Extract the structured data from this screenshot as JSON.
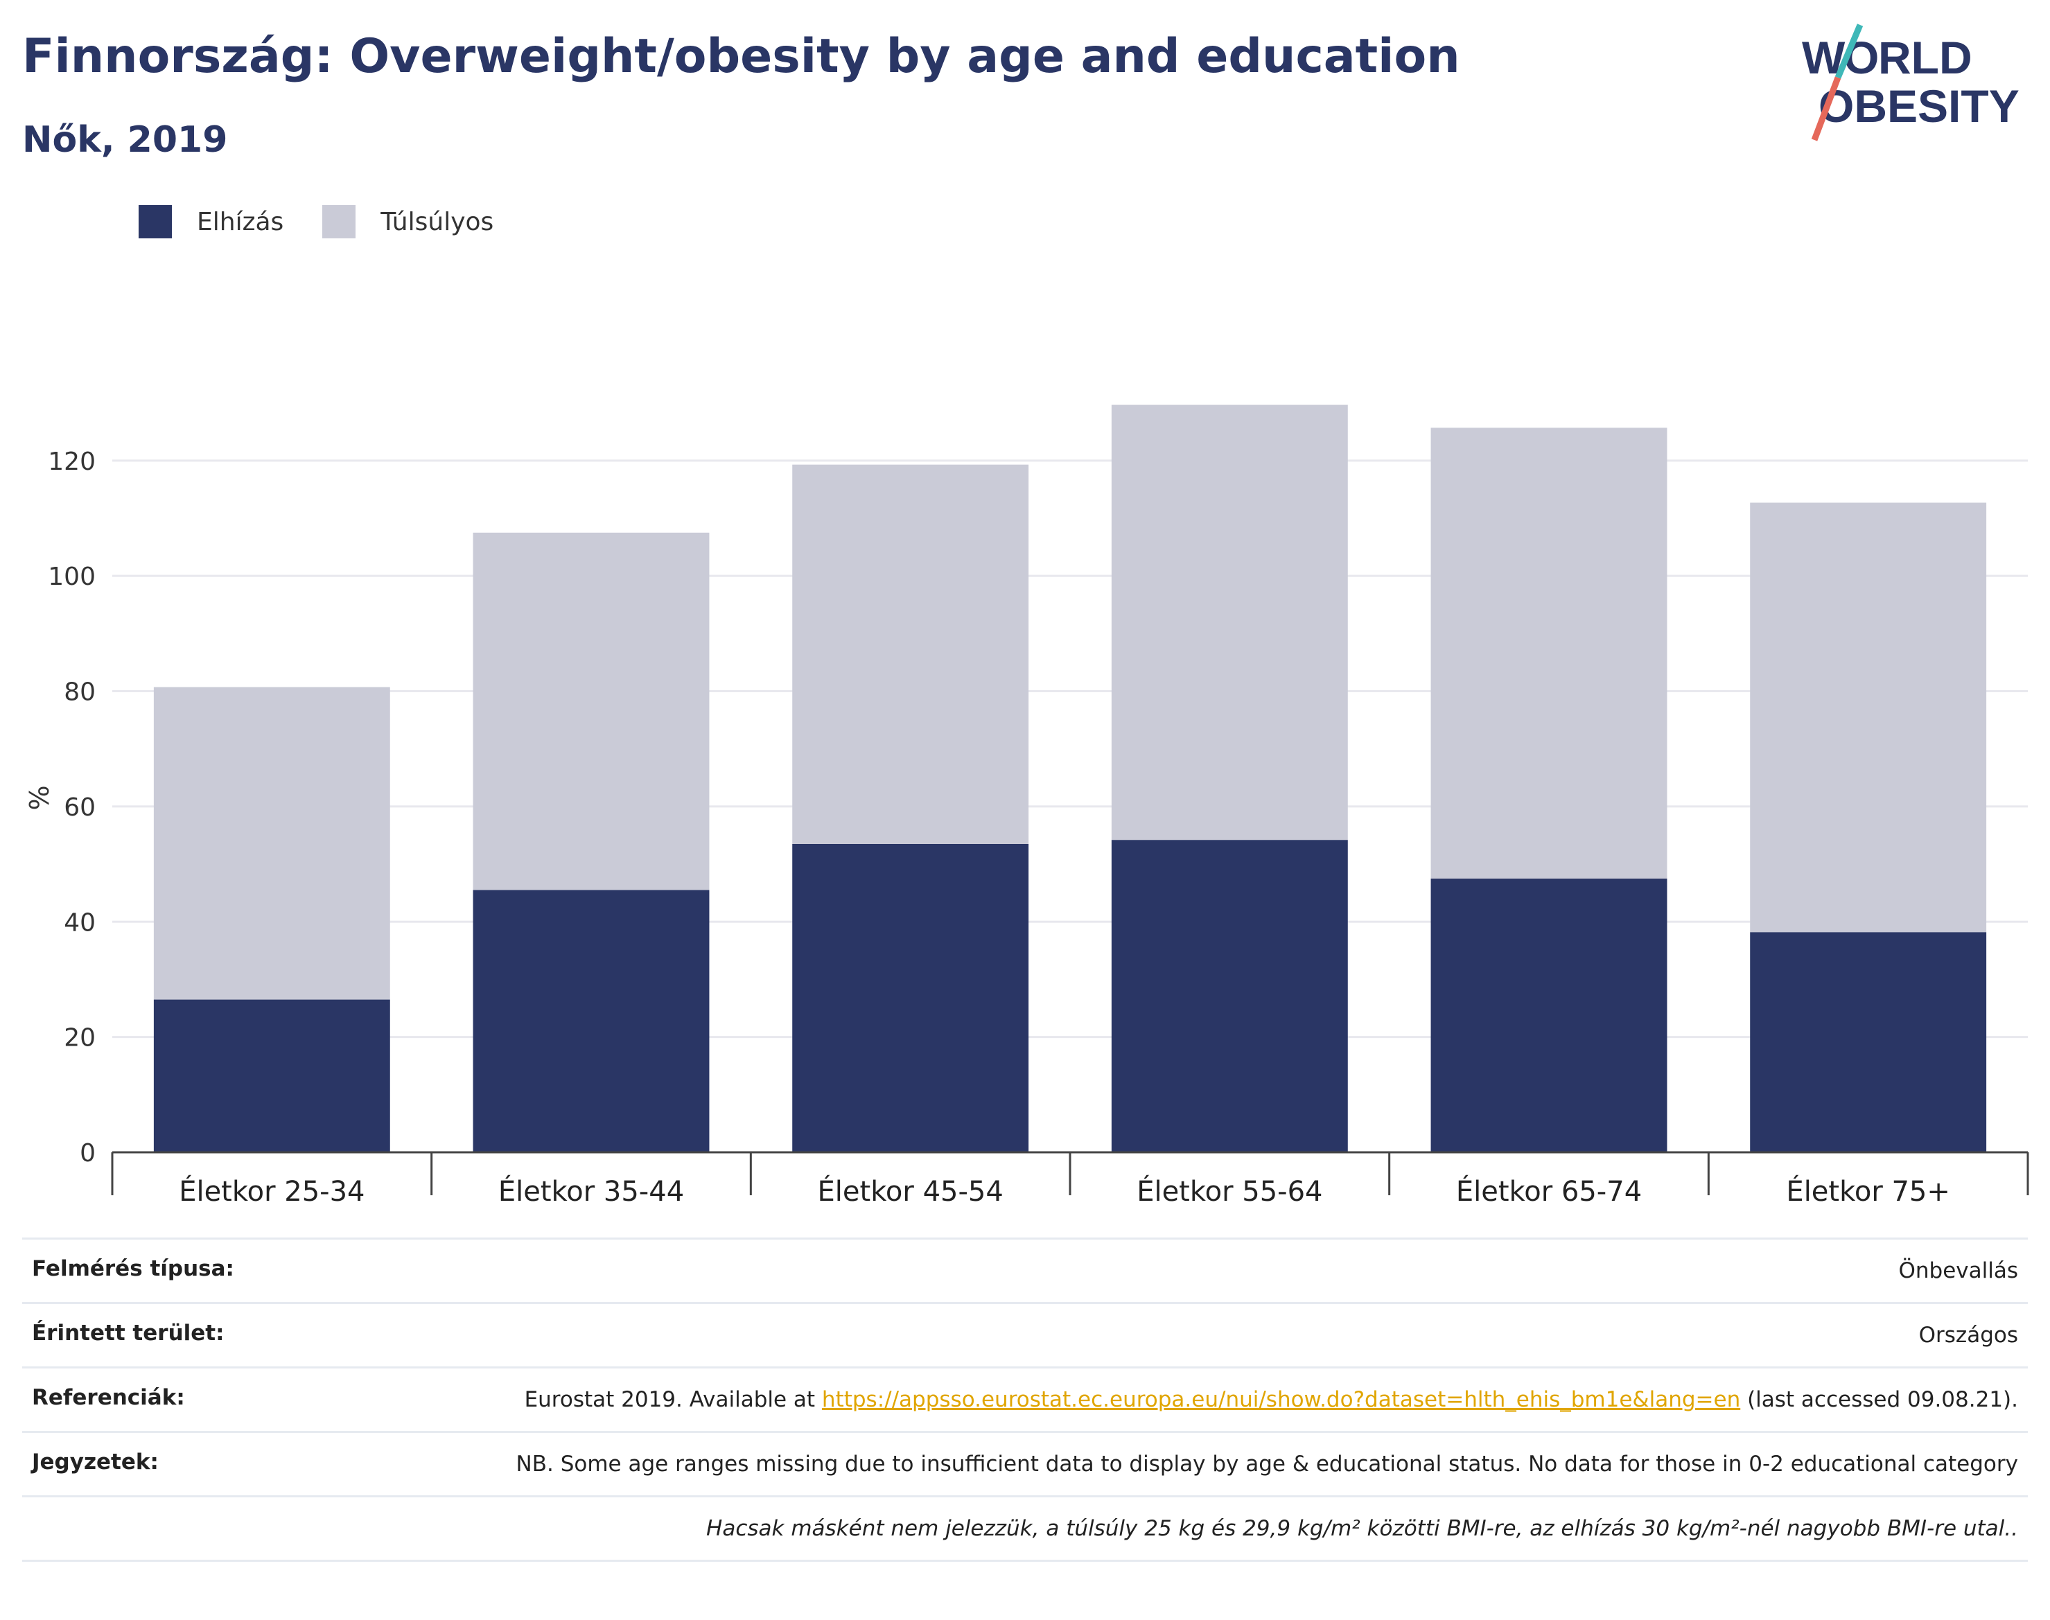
{
  "header": {
    "title": "Finnország: Overweight/obesity by age and education",
    "subtitle": "Nők, 2019"
  },
  "logo": {
    "line1": "WORLD",
    "line2": "OBESITY"
  },
  "colors": {
    "obesity": "#2a3665",
    "overweight": "#cacbd7",
    "accent_teal": "#3fb8b8",
    "accent_red": "#e5685a"
  },
  "chart_data": {
    "type": "bar",
    "stacked": true,
    "categories": [
      "Életkor 25-34",
      "Életkor 35-44",
      "Életkor 45-54",
      "Életkor 55-64",
      "Életkor 65-74",
      "Életkor 75+"
    ],
    "series": [
      {
        "name": "Elhízás",
        "values": [
          26.5,
          45.5,
          53.5,
          54.2,
          47.5,
          38.2
        ]
      },
      {
        "name": "Túlsúlyos",
        "values": [
          54.2,
          62.0,
          65.8,
          75.5,
          78.2,
          74.5
        ]
      }
    ],
    "ylabel": "%",
    "ylim": [
      0,
      135
    ],
    "yticks": [
      0,
      20,
      40,
      60,
      80,
      100,
      120
    ],
    "grid": true,
    "legend_position": "top-left"
  },
  "info": {
    "survey_label": "Felmérés típusa:",
    "survey_value": "Önbevallás",
    "area_label": "Érintett terület:",
    "area_value": "Országos",
    "ref_label": "Referenciák:",
    "ref_prefix": "Eurostat 2019. Available at ",
    "ref_link": "https://appsso.eurostat.ec.europa.eu/nui/show.do?dataset=hlth_ehis_bm1e&lang=en",
    "ref_suffix": " (last accessed 09.08.21).",
    "notes_label": "Jegyzetek:",
    "notes_value": "NB. Some age ranges missing due to insufficient data to display by age & educational status. No data for those in 0-2 educational category",
    "footnote": "Hacsak másként nem jelezzük, a túlsúly 25 kg és 29,9 kg/m² közötti BMI-re, az elhízás 30 kg/m²-nél nagyobb BMI-re utal.."
  }
}
